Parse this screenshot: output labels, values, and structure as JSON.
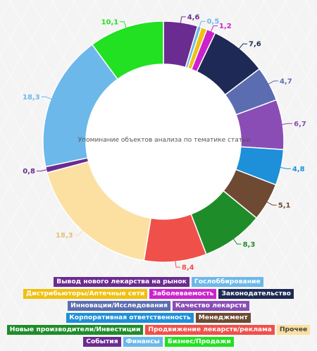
{
  "chart_data": {
    "type": "pie",
    "donut": true,
    "title": "Упоминание объектов анализа по тематике статьи",
    "slices": [
      {
        "name": "Вывод нового лекарства на рынок",
        "value": 4.6,
        "label": "4,6",
        "color": "#6b2c91"
      },
      {
        "name": "Гослоббирование",
        "value": 0.5,
        "label": "0,5",
        "color": "#6cb8ea"
      },
      {
        "name": "Дистрибьюторы/Аптечные сети",
        "value": 0.8,
        "label": "",
        "color": "#f0c010"
      },
      {
        "name": "Заболеваемость",
        "value": 1.2,
        "label": "1,2",
        "color": "#cc22cc"
      },
      {
        "name": "Законодательство",
        "value": 7.6,
        "label": "7,6",
        "color": "#1e2a55"
      },
      {
        "name": "Инновации/Исследования",
        "value": 4.7,
        "label": "4,7",
        "color": "#5b6db0"
      },
      {
        "name": "Качество лекарств",
        "value": 6.7,
        "label": "6,7",
        "color": "#8a4db5"
      },
      {
        "name": "Корпоративная ответственность",
        "value": 4.8,
        "label": "4,8",
        "color": "#1e8fd9"
      },
      {
        "name": "Менеджмент",
        "value": 5.1,
        "label": "5,1",
        "color": "#6e4a32"
      },
      {
        "name": "Новые производители/Инвестиции",
        "value": 8.3,
        "label": "8,3",
        "color": "#1f8c2a"
      },
      {
        "name": "Продвижение лекарств/реклама",
        "value": 8.4,
        "label": "8,4",
        "color": "#f0504a"
      },
      {
        "name": "Прочее",
        "value": 18.3,
        "label": "18,3",
        "color": "#fbe0a2"
      },
      {
        "name": "События",
        "value": 0.8,
        "label": "0,8",
        "color": "#6b2c91"
      },
      {
        "name": "Финансы",
        "value": 18.3,
        "label": "18,3",
        "color": "#6cb8ea"
      },
      {
        "name": "Бизнес/Продажи",
        "value": 10.1,
        "label": "10,1",
        "color": "#22e022"
      }
    ],
    "legend_placement": "bottom"
  },
  "legend_rows": [
    [
      {
        "text": "Вывод нового лекарства на рынок",
        "color": "#6b2c91"
      },
      {
        "text": "Гослоббирование",
        "color": "#6cb8ea"
      }
    ],
    [
      {
        "text": "Дистрибьюторы/Аптечные сети",
        "color": "#f0c010"
      },
      {
        "text": "Заболеваемость",
        "color": "#cc22cc"
      },
      {
        "text": "Законодательство",
        "color": "#1e2a55"
      }
    ],
    [
      {
        "text": "Инновации/Исследования",
        "color": "#5b6db0"
      },
      {
        "text": "Качество лекарств",
        "color": "#8a4db5"
      }
    ],
    [
      {
        "text": "Корпоративная ответственность",
        "color": "#1e8fd9"
      },
      {
        "text": "Менеджмент",
        "color": "#6e4a32"
      }
    ],
    [
      {
        "text": "Новые производители/Инвестиции",
        "color": "#1f8c2a"
      },
      {
        "text": "Продвижение лекарств/реклама",
        "color": "#f0504a"
      },
      {
        "text": "Прочее",
        "color": "#fbe0a2",
        "dark": true
      }
    ],
    [
      {
        "text": "События",
        "color": "#6b2c91"
      },
      {
        "text": "Финансы",
        "color": "#6cb8ea"
      },
      {
        "text": "Бизнес/Продажи",
        "color": "#22e022"
      }
    ]
  ]
}
